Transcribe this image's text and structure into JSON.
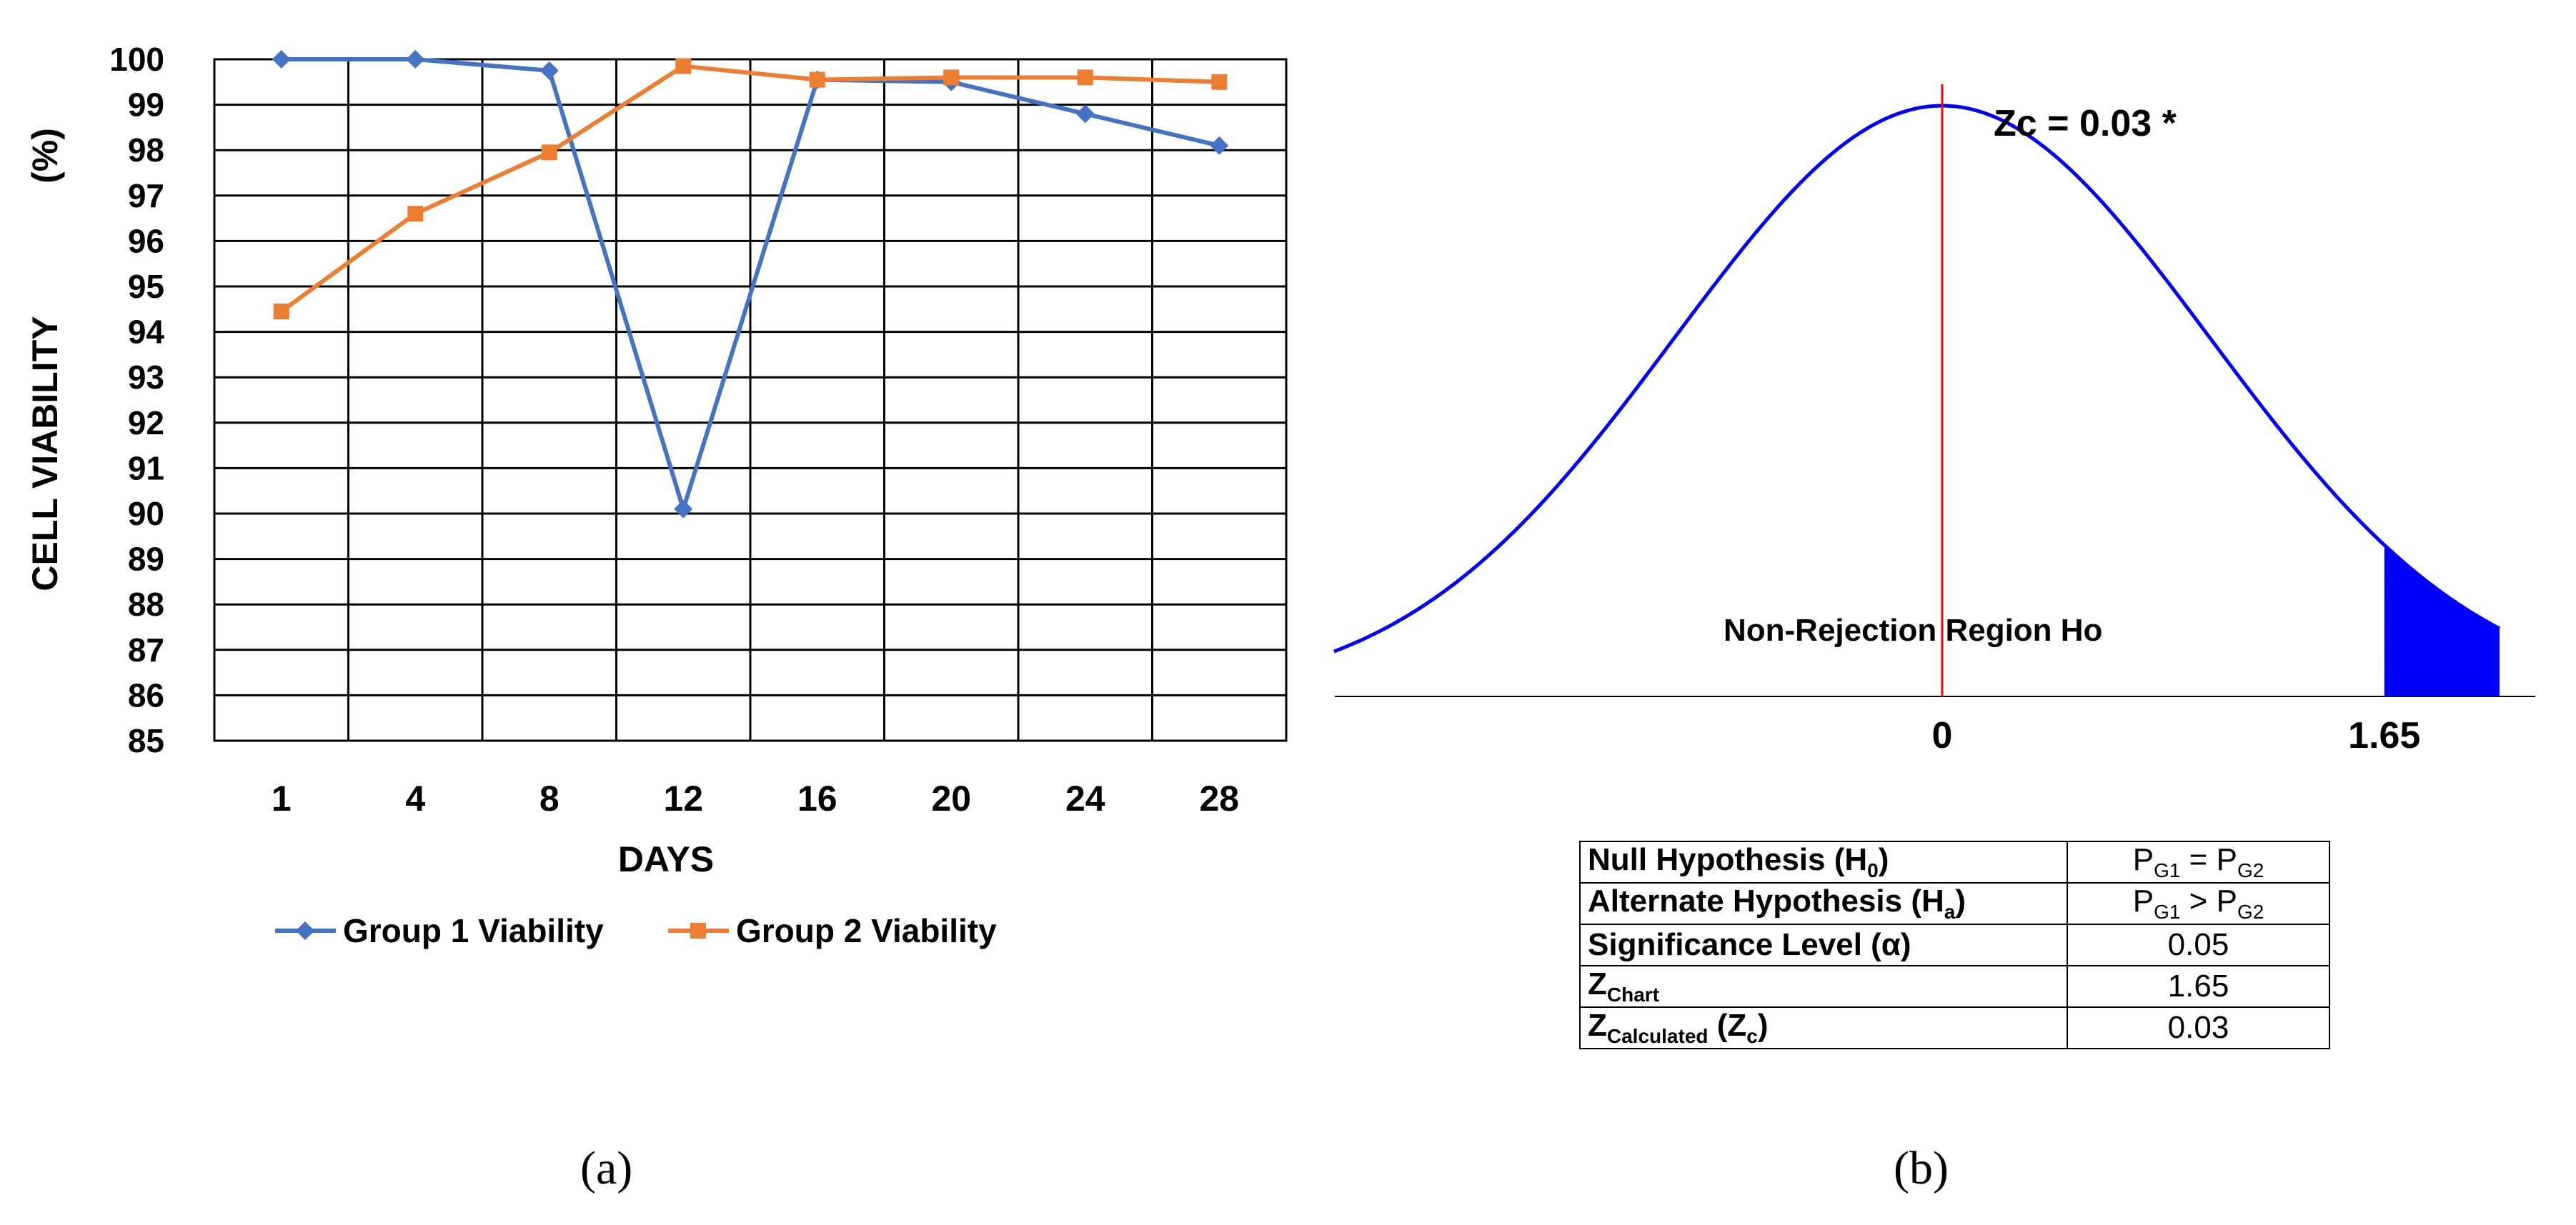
{
  "chart_data": [
    {
      "type": "line",
      "categories": [
        "1",
        "4",
        "8",
        "12",
        "16",
        "20",
        "24",
        "28"
      ],
      "xlabel": "DAYS",
      "ylabel": "CELL VIABILITY",
      "ylabel_unit": "(%)",
      "ylim": [
        85,
        100
      ],
      "yticks": [
        "85",
        "86",
        "87",
        "88",
        "89",
        "90",
        "91",
        "92",
        "93",
        "94",
        "95",
        "96",
        "97",
        "98",
        "99",
        "100"
      ],
      "grid": true,
      "legend_position": "bottom",
      "series": [
        {
          "name": "Group 1 Viability",
          "color": "#4472c4",
          "marker": "diamond",
          "values": [
            100,
            100,
            99.75,
            90.1,
            99.55,
            99.5,
            98.8,
            98.1
          ]
        },
        {
          "name": "Group 2 Viability",
          "color": "#ed7d31",
          "marker": "square",
          "values": [
            94.45,
            96.6,
            97.95,
            99.85,
            99.55,
            99.6,
            99.6,
            99.5
          ]
        }
      ]
    },
    {
      "type": "area",
      "curve": "normal-distribution",
      "line_color": "#0000ff",
      "marker_line_color": "#ff0000",
      "shaded_color": "#0000ff",
      "x_ticks": [
        "0",
        "1.65"
      ],
      "critical_value": 1.65,
      "annotation": "Zc = 0.03 *",
      "region_label": "Non-Rejection Region Ho"
    }
  ],
  "table": {
    "rows": [
      {
        "label_main": "Null Hypothesis (H",
        "label_sub": "0",
        "label_tail": ")",
        "v1": "P",
        "v1_sub": "G1",
        "op": " = ",
        "v2": "P",
        "v2_sub": "G2"
      },
      {
        "label_main": "Alternate Hypothesis (H",
        "label_sub": "a",
        "label_tail": ")",
        "v1": "P",
        "v1_sub": "G1",
        "op": " > ",
        "v2": "P",
        "v2_sub": "G2"
      },
      {
        "label_main": "Significance Level (α)",
        "value": "0.05"
      },
      {
        "label_main": "Z",
        "label_sub": "Chart",
        "value": "1.65"
      },
      {
        "label_main": "Z",
        "label_sub": "Calculated",
        "label_tail": " (Z",
        "label_sub2": "c",
        "label_tail2": ")",
        "value": "0.03"
      }
    ]
  },
  "panel_labels": {
    "a": "(a)",
    "b": "(b)"
  }
}
